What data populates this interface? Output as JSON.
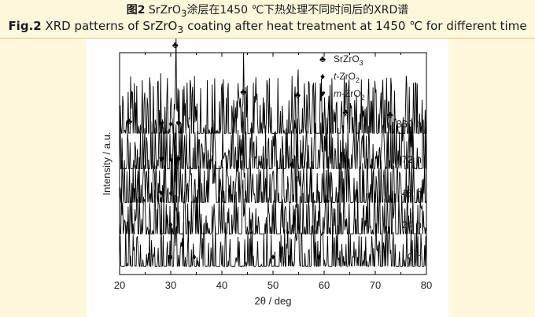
{
  "caption": {
    "zh_label": "图2",
    "zh_text_1": "SrZrO",
    "zh_text_sub": "3",
    "zh_text_2": "涂层在1450 ℃下热处理不同时间后的XRD谱",
    "en_label": "Fig.2",
    "en_text_1": "XRD patterns of SrZrO",
    "en_text_sub": "3",
    "en_text_2": " coating after heat treatment at 1450 ℃ for different time"
  },
  "chart_data": {
    "type": "line",
    "xlabel": "2θ / deg",
    "ylabel": "Intensity / a.u.",
    "xlim": [
      20,
      80
    ],
    "xticks": [
      20,
      30,
      40,
      50,
      60,
      70,
      80
    ],
    "grid": false,
    "legend_position": "top-right",
    "legend": [
      {
        "symbol": "♣",
        "label": "SrZrO",
        "sub": "3"
      },
      {
        "symbol": "♦",
        "label": "t-ZrO",
        "sub": "2"
      },
      {
        "symbol": "♥",
        "label": "m-ZrO",
        "sub": "2"
      }
    ],
    "phase_peaks": {
      "SrZrO3": [
        30.9,
        44.2,
        54.8,
        64.2,
        72.9
      ],
      "t-ZrO2": [
        30.0,
        34.6,
        50.0,
        59.0
      ],
      "m-ZrO2": [
        28.2,
        31.5
      ]
    },
    "series": [
      {
        "name": "360 h",
        "peaks": [
          [
            21.9,
            0.06
          ],
          [
            28.2,
            0.1
          ],
          [
            30.0,
            0.07
          ],
          [
            30.9,
            1.0
          ],
          [
            31.5,
            0.09
          ],
          [
            44.2,
            0.42
          ],
          [
            54.8,
            0.38
          ],
          [
            64.2,
            0.17
          ],
          [
            72.9,
            0.14
          ]
        ],
        "markers": [
          {
            "symbol": "♣",
            "x": 21.9
          },
          {
            "symbol": "♥",
            "x": 28.2
          },
          {
            "symbol": "♦",
            "x": 30.0
          },
          {
            "symbol": "♣",
            "x": 30.9
          },
          {
            "symbol": "♥",
            "x": 31.5
          },
          {
            "symbol": "♣",
            "x": 44.2
          },
          {
            "symbol": "♣",
            "x": 54.8
          },
          {
            "symbol": "♣",
            "x": 64.2
          },
          {
            "symbol": "♣",
            "x": 72.9
          }
        ]
      },
      {
        "name": "72 h",
        "peaks": [
          [
            28.2,
            0.1
          ],
          [
            30.0,
            0.07
          ],
          [
            30.9,
            1.0
          ],
          [
            31.5,
            0.08
          ],
          [
            44.2,
            0.45
          ],
          [
            54.8,
            0.38
          ],
          [
            64.2,
            0.16
          ],
          [
            72.9,
            0.14
          ]
        ],
        "markers": [
          {
            "symbol": "♥",
            "x": 28.2
          },
          {
            "symbol": "♦",
            "x": 30.0
          },
          {
            "symbol": "♥",
            "x": 31.5
          }
        ]
      },
      {
        "name": "48 h",
        "peaks": [
          [
            28.2,
            0.07
          ],
          [
            30.0,
            0.07
          ],
          [
            30.9,
            1.0
          ],
          [
            44.2,
            0.48
          ],
          [
            54.8,
            0.4
          ],
          [
            64.2,
            0.17
          ],
          [
            72.9,
            0.15
          ]
        ],
        "markers": [
          {
            "symbol": "♥",
            "x": 28.2
          },
          {
            "symbol": "♦",
            "x": 30.0
          }
        ]
      },
      {
        "name": "24 h",
        "peaks": [
          [
            30.0,
            0.05
          ],
          [
            30.9,
            1.0
          ],
          [
            44.2,
            0.5
          ],
          [
            54.8,
            0.42
          ],
          [
            64.2,
            0.18
          ],
          [
            72.9,
            0.16
          ]
        ],
        "markers": [
          {
            "symbol": "♦",
            "x": 30.0
          }
        ]
      },
      {
        "name": "0 h",
        "peaks": [
          [
            30.0,
            0.05
          ],
          [
            30.9,
            1.0
          ],
          [
            34.6,
            0.04
          ],
          [
            44.2,
            0.26
          ],
          [
            50.0,
            0.03
          ],
          [
            54.8,
            0.26
          ],
          [
            59.0,
            0.02
          ],
          [
            64.2,
            0.1
          ],
          [
            72.9,
            0.08
          ]
        ],
        "markers": [
          {
            "symbol": "♦",
            "x": 30.0
          },
          {
            "symbol": "♦",
            "x": 34.6
          },
          {
            "symbol": "♦",
            "x": 50.0
          },
          {
            "symbol": "♦",
            "x": 59.0
          }
        ]
      }
    ]
  }
}
